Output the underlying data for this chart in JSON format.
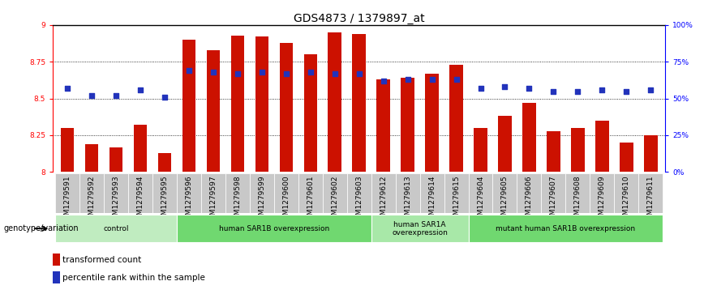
{
  "title": "GDS4873 / 1379897_at",
  "samples": [
    "GSM1279591",
    "GSM1279592",
    "GSM1279593",
    "GSM1279594",
    "GSM1279595",
    "GSM1279596",
    "GSM1279597",
    "GSM1279598",
    "GSM1279599",
    "GSM1279600",
    "GSM1279601",
    "GSM1279602",
    "GSM1279603",
    "GSM1279612",
    "GSM1279613",
    "GSM1279614",
    "GSM1279615",
    "GSM1279604",
    "GSM1279605",
    "GSM1279606",
    "GSM1279607",
    "GSM1279608",
    "GSM1279609",
    "GSM1279610",
    "GSM1279611"
  ],
  "bar_values": [
    8.3,
    8.19,
    8.17,
    8.32,
    8.13,
    8.9,
    8.83,
    8.93,
    8.92,
    8.88,
    8.8,
    8.95,
    8.94,
    8.63,
    8.64,
    8.67,
    8.73,
    8.3,
    8.38,
    8.47,
    8.28,
    8.3,
    8.35,
    8.2,
    8.25
  ],
  "percentile_values": [
    8.57,
    8.52,
    8.52,
    8.56,
    8.51,
    8.69,
    8.68,
    8.67,
    8.68,
    8.67,
    8.68,
    8.67,
    8.67,
    8.62,
    8.63,
    8.63,
    8.63,
    8.57,
    8.58,
    8.57,
    8.55,
    8.55,
    8.56,
    8.55,
    8.56
  ],
  "bar_color": "#CC1100",
  "dot_color": "#2233BB",
  "ylim_left": [
    8.0,
    9.0
  ],
  "ylim_right": [
    0,
    100
  ],
  "yticks_left": [
    8.0,
    8.25,
    8.5,
    8.75,
    9.0
  ],
  "ytick_labels_left": [
    "8",
    "8.25",
    "8.5",
    "8.75",
    "9"
  ],
  "yticks_right": [
    0,
    25,
    50,
    75,
    100
  ],
  "ytick_labels_right": [
    "0%",
    "25%",
    "50%",
    "75%",
    "100%"
  ],
  "groups": [
    {
      "label": "control",
      "start": 0,
      "end": 5,
      "color": "#c0ecc0"
    },
    {
      "label": "human SAR1B overexpression",
      "start": 5,
      "end": 13,
      "color": "#70d870"
    },
    {
      "label": "human SAR1A\noverexpression",
      "start": 13,
      "end": 17,
      "color": "#a8e8a8"
    },
    {
      "label": "mutant human SAR1B overexpression",
      "start": 17,
      "end": 25,
      "color": "#70d870"
    }
  ],
  "genotype_label": "genotype/variation",
  "legend_bar_label": "transformed count",
  "legend_dot_label": "percentile rank within the sample",
  "title_fontsize": 10,
  "tick_fontsize": 6.5,
  "bar_width": 0.55,
  "xlim": [
    -0.6,
    24.6
  ]
}
